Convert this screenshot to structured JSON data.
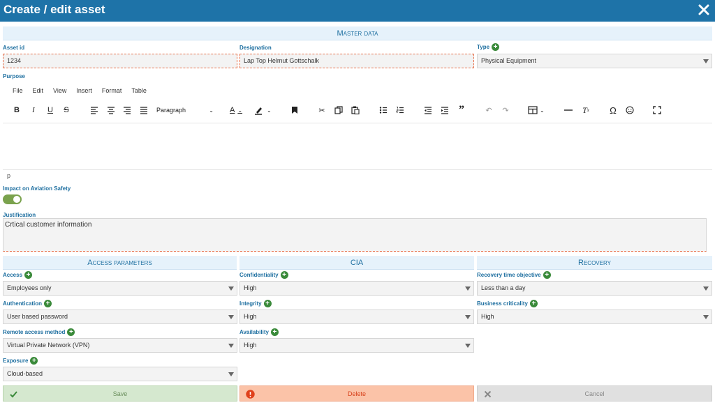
{
  "dialog": {
    "title": "Create / edit asset"
  },
  "sections": {
    "master": "Master data",
    "access": "Access parameters",
    "cia": "CIA",
    "recovery": "Recovery"
  },
  "fields": {
    "asset_id": {
      "label": "Asset id",
      "value": "1234"
    },
    "designation": {
      "label": "Designation",
      "value": "Lap Top Helmut Gottschalk"
    },
    "type": {
      "label": "Type",
      "value": "Physical Equipment"
    },
    "purpose": {
      "label": "Purpose"
    },
    "impact": {
      "label": "Impact on Aviation Safety",
      "on": true
    },
    "justification": {
      "label": "Justification",
      "value": "Crtical customer information"
    },
    "access": {
      "label": "Access",
      "value": "Employees only"
    },
    "authentication": {
      "label": "Authentication",
      "value": "User based password"
    },
    "remote_access": {
      "label": "Remote access method",
      "value": "Virtual Private Network (VPN)"
    },
    "exposure": {
      "label": "Exposure",
      "value": "Cloud-based"
    },
    "confidentiality": {
      "label": "Confidentiality",
      "value": "High"
    },
    "integrity": {
      "label": "Integrity",
      "value": "High"
    },
    "availability": {
      "label": "Availability",
      "value": "High"
    },
    "rto": {
      "label": "Recovery time objective",
      "value": "Less than a day"
    },
    "business_criticality": {
      "label": "Business criticality",
      "value": "High"
    }
  },
  "editor": {
    "menu": [
      "File",
      "Edit",
      "View",
      "Insert",
      "Format",
      "Table"
    ],
    "block_format": "Paragraph",
    "status_path": "p"
  },
  "buttons": {
    "save": "Save",
    "delete": "Delete",
    "cancel": "Cancel"
  },
  "colors": {
    "header": "#1e73a8",
    "section_text": "#1e6fa0",
    "save_bg": "#d5e8cf",
    "delete_bg": "#fbc3a8",
    "cancel_bg": "#e0e0e0"
  },
  "icons": [
    "close-icon",
    "plus-icon",
    "bold-icon",
    "italic-icon",
    "underline-icon",
    "strikethrough-icon",
    "align-left-icon",
    "align-center-icon",
    "align-right-icon",
    "justify-icon",
    "text-color-icon",
    "highlight-icon",
    "bookmark-icon",
    "cut-icon",
    "copy-icon",
    "paste-icon",
    "bullet-list-icon",
    "numbered-list-icon",
    "outdent-icon",
    "indent-icon",
    "blockquote-icon",
    "undo-icon",
    "redo-icon",
    "table-icon",
    "horizontal-rule-icon",
    "clear-format-icon",
    "special-char-icon",
    "emoji-icon",
    "fullscreen-icon",
    "check-icon",
    "alert-icon",
    "x-icon"
  ]
}
